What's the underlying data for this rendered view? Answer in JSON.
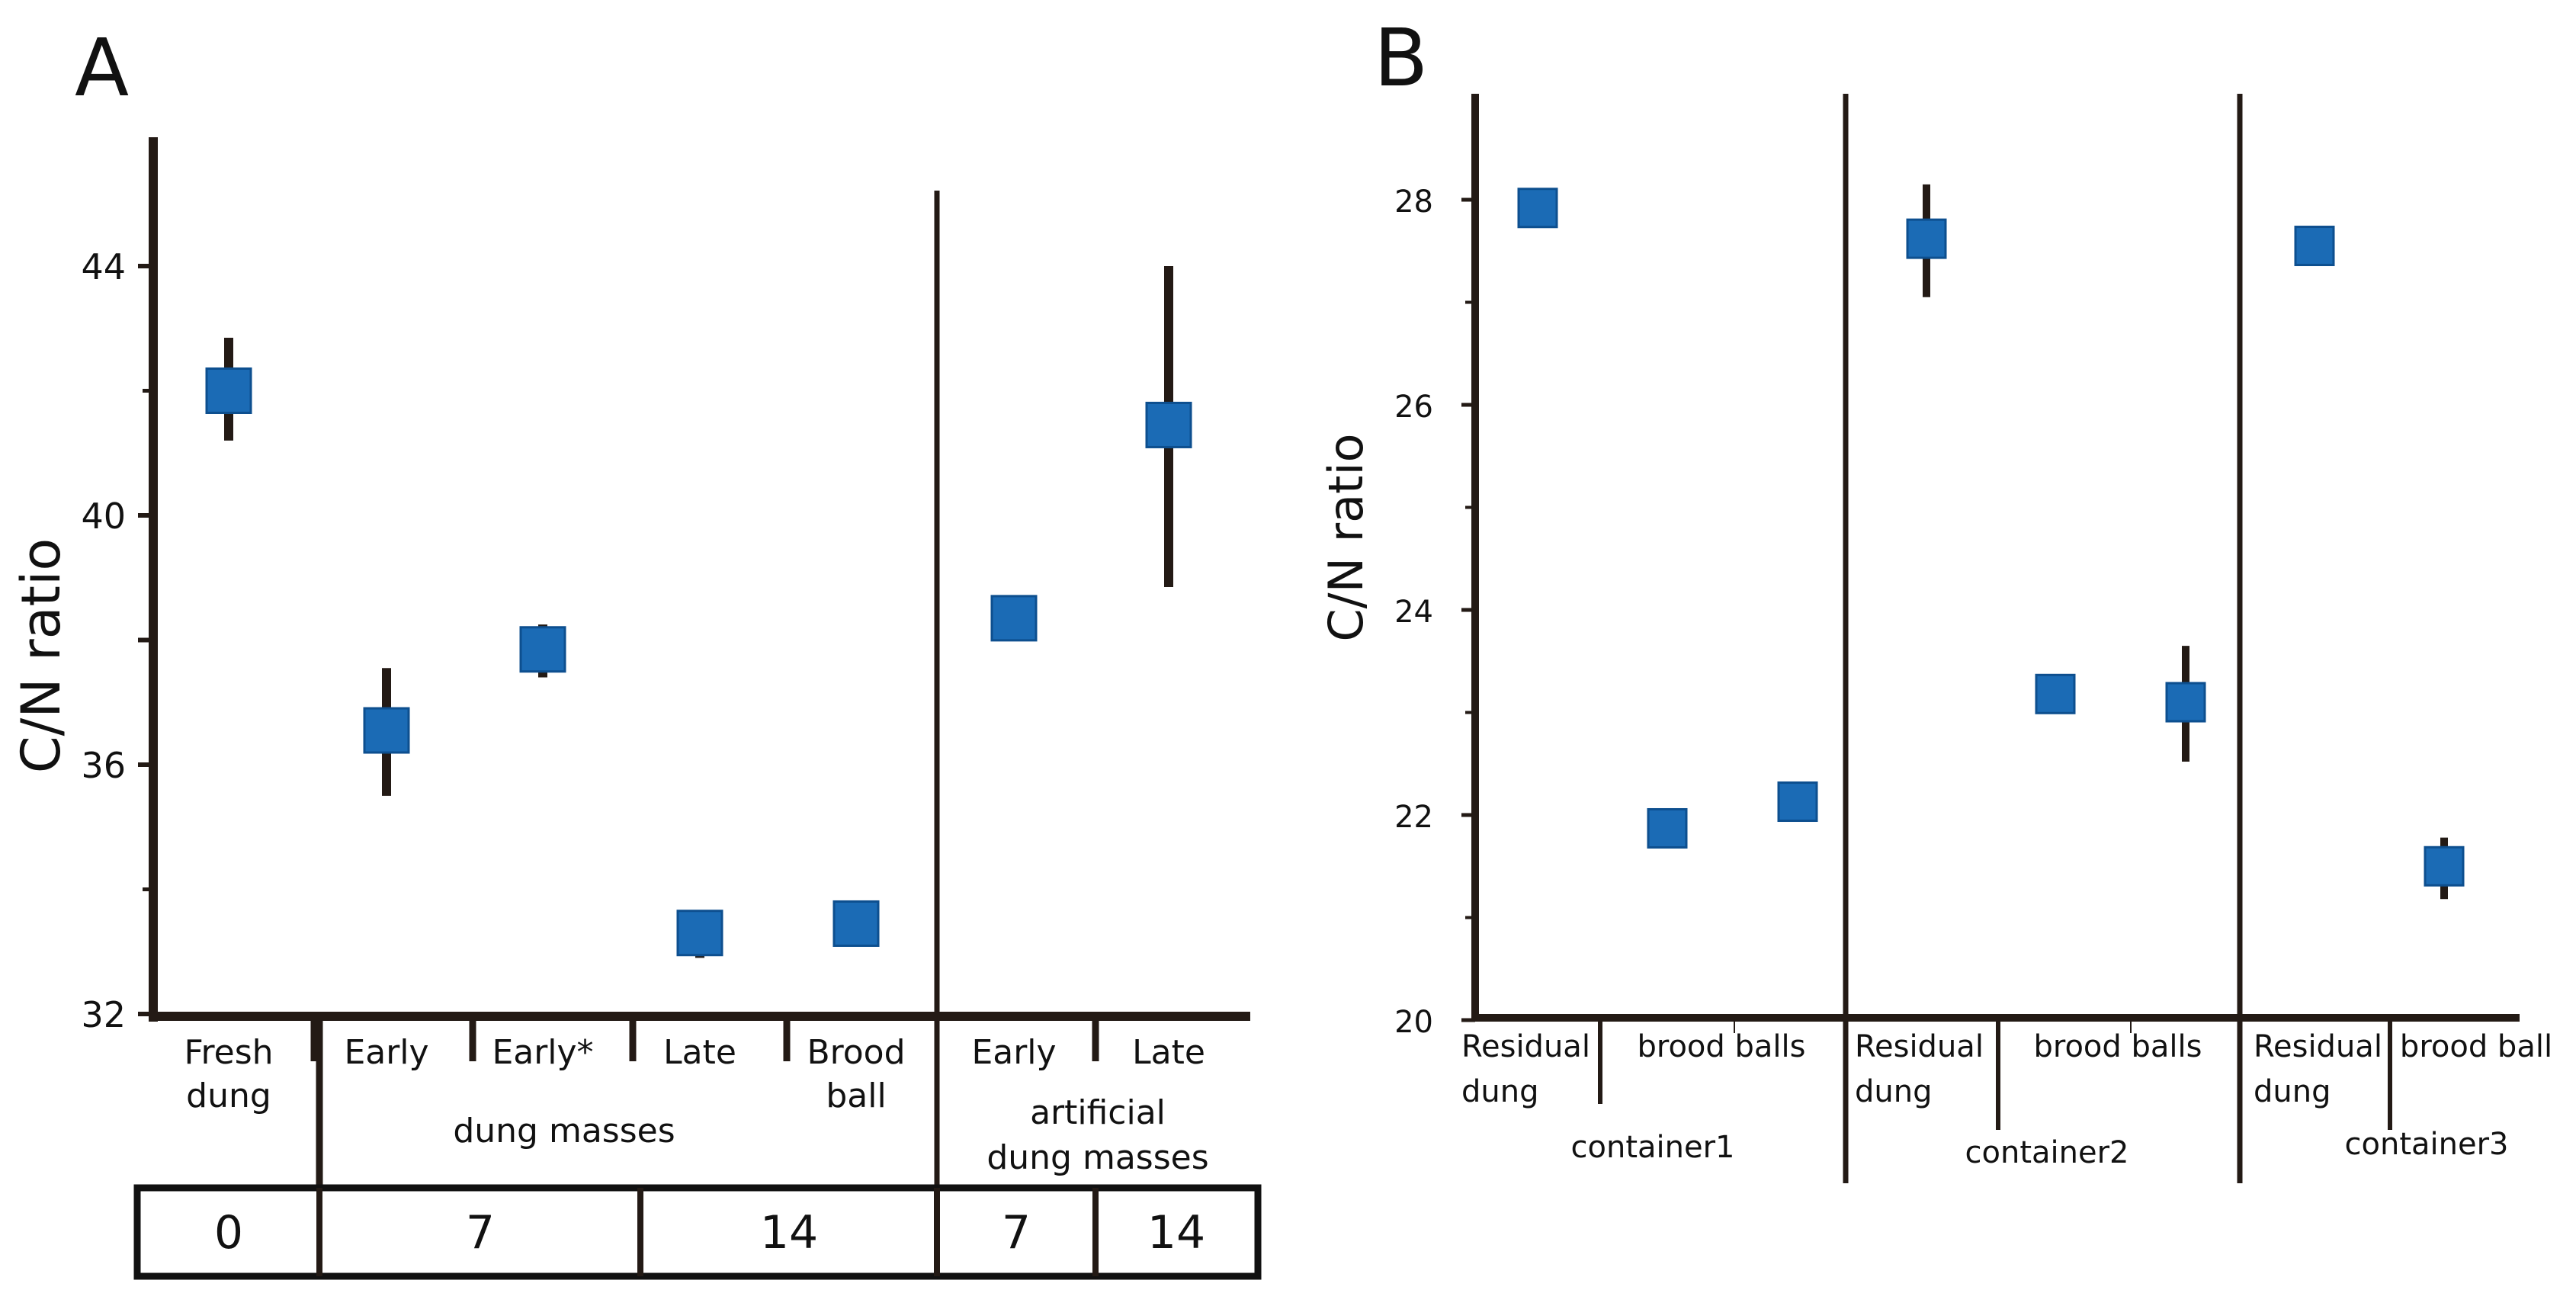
{
  "colors": {
    "marker": "#1b6bb5",
    "marker_edge": "#0d4f8f",
    "axis": "#231a15",
    "text": "#111111"
  },
  "chart_data": [
    {
      "panel": "A",
      "type": "scatter",
      "ylabel": "C/N ratio",
      "ylim": [
        32,
        46
      ],
      "yticks": [
        32,
        36,
        40,
        44
      ],
      "categories": [
        "Fresh dung",
        "Early",
        "Early*",
        "Late",
        "Brood ball",
        "Early",
        "Late"
      ],
      "category_lines": [
        [
          "Fresh",
          "dung"
        ],
        [
          "Early"
        ],
        [
          "Early*"
        ],
        [
          "Late"
        ],
        [
          "Brood",
          "ball"
        ],
        [
          "Early"
        ],
        [
          "Late"
        ]
      ],
      "points": [
        {
          "label": "Fresh dung",
          "value": 42.0,
          "err": [
            41.2,
            42.85
          ]
        },
        {
          "label": "Early",
          "value": 36.55,
          "err": [
            35.5,
            37.55
          ]
        },
        {
          "label": "Early*",
          "value": 37.85,
          "err": [
            37.4,
            38.25
          ]
        },
        {
          "label": "Late",
          "value": 33.3,
          "err": [
            32.9,
            33.65
          ]
        },
        {
          "label": "Brood ball",
          "value": 33.45,
          "err": null
        },
        {
          "label": "Early",
          "value": 38.35,
          "err": null
        },
        {
          "label": "Late",
          "value": 41.45,
          "err": [
            38.85,
            44.0
          ]
        }
      ],
      "group_labels": [
        [
          "dung masses"
        ],
        [
          "artificial",
          "dung masses"
        ]
      ],
      "day_cells": [
        "0",
        "7",
        "14",
        "7",
        "14"
      ]
    },
    {
      "panel": "B",
      "type": "scatter",
      "ylabel": "C/N ratio",
      "ylim": [
        20,
        29
      ],
      "yticks": [
        20,
        22,
        24,
        26,
        28
      ],
      "points": [
        {
          "label": "Residual dung (container1)",
          "value": 27.92,
          "err": null
        },
        {
          "label": "brood ball 1 (container1)",
          "value": 21.87,
          "err": null
        },
        {
          "label": "brood ball 2 (container1)",
          "value": 22.13,
          "err": null
        },
        {
          "label": "Residual dung (container2)",
          "value": 27.62,
          "err": [
            27.05,
            28.15
          ]
        },
        {
          "label": "brood ball 1 (container2)",
          "value": 23.18,
          "err": null
        },
        {
          "label": "brood ball 2 (container2)",
          "value": 23.1,
          "err": [
            22.52,
            23.65
          ]
        },
        {
          "label": "Residual dung (container3)",
          "value": 27.55,
          "err": null
        },
        {
          "label": "brood ball (container3)",
          "value": 21.5,
          "err": [
            21.18,
            21.78
          ]
        }
      ],
      "residual_label": [
        "Residual",
        "dung"
      ],
      "sub_labels": [
        "brood balls",
        "brood balls",
        "brood ball"
      ],
      "containers": [
        "container1",
        "container2",
        "container3"
      ]
    }
  ]
}
